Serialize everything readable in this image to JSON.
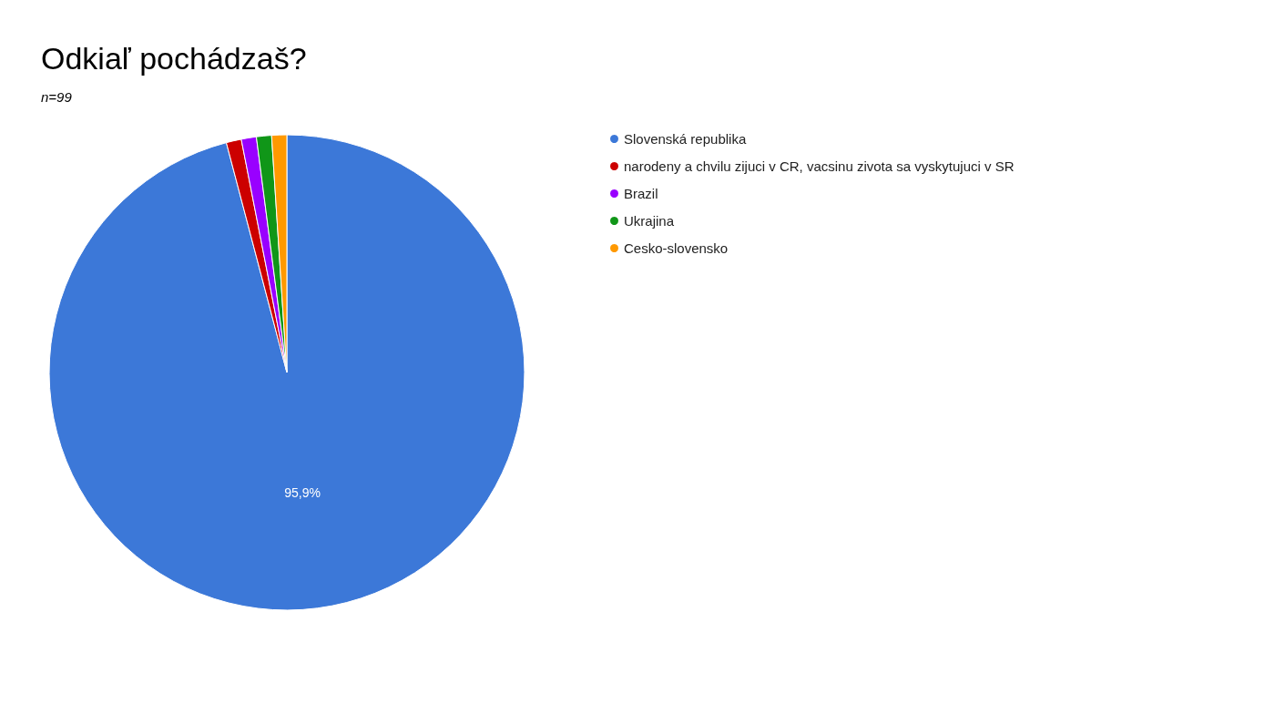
{
  "chart_data": {
    "type": "pie",
    "title": "Odkiaľ pochádzaš?",
    "subtitle": "n=99",
    "categories": [
      "Slovenská republika",
      "narodeny a chvilu zijuci v CR, vacsinu zivota sa vyskytujuci v SR",
      "Brazil",
      "Ukrajina",
      "Cesko-slovensko"
    ],
    "values": [
      95.9,
      1.025,
      1.025,
      1.025,
      1.025
    ],
    "colors": [
      "#3c78d8",
      "#cc0000",
      "#9900ff",
      "#109618",
      "#ff9900"
    ],
    "value_labels": [
      "95,9%",
      null,
      null,
      null,
      null
    ],
    "legend": "right"
  }
}
